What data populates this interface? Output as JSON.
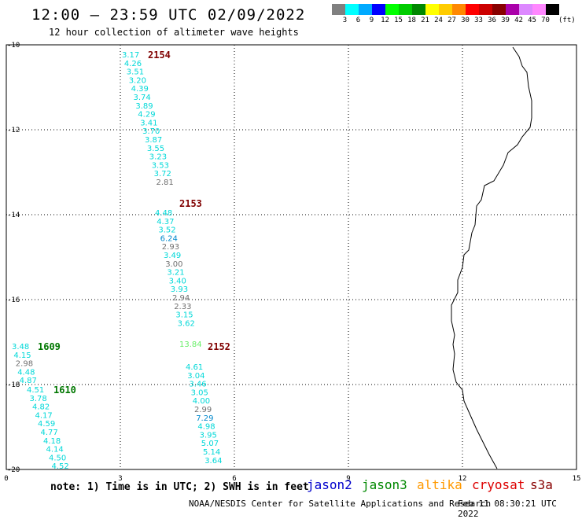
{
  "header": {
    "title": "12:00 — 23:59 UTC 02/09/2022",
    "subtitle": "12 hour collection of altimeter wave heights"
  },
  "color_scale": {
    "labels": [
      "3",
      "6",
      "9",
      "12",
      "15",
      "18",
      "21",
      "24",
      "27",
      "30",
      "33",
      "36",
      "39",
      "42",
      "45",
      "70"
    ],
    "colors": [
      "#808080",
      "#00ffff",
      "#00aaff",
      "#0000ff",
      "#00ff00",
      "#00cc00",
      "#008800",
      "#ffff00",
      "#ffcc00",
      "#ff8800",
      "#ff0000",
      "#cc0000",
      "#880000",
      "#aa00aa",
      "#dd88ff",
      "#ff88ff",
      "#000000"
    ],
    "unit": "(ft)"
  },
  "axes": {
    "lat_labels": [
      "-10",
      "-12",
      "-14",
      "-16",
      "-18",
      "-20"
    ],
    "lon_labels": [
      "0",
      "3",
      "6",
      "9",
      "12",
      "15"
    ],
    "lat_range": [
      -20,
      -10
    ],
    "lon_range": [
      0,
      15
    ]
  },
  "chart_data": {
    "type": "scatter",
    "tracks": [
      {
        "label": "2154",
        "label_color": "#800000",
        "values": [
          "3.17",
          "4.26",
          "3.51",
          "3.20",
          "4.39",
          "3.74",
          "3.89",
          "4.29",
          "3.41",
          "3.70",
          "3.87",
          "3.55",
          "3.23",
          "3.53",
          "3.72",
          "2.81"
        ],
        "colors": [
          "#00d8d8",
          "#00d8d8",
          "#00d8d8",
          "#00d8d8",
          "#00d8d8",
          "#00d8d8",
          "#00d8d8",
          "#00d8d8",
          "#00d8d8",
          "#00d8d8",
          "#00d8d8",
          "#00d8d8",
          "#00d8d8",
          "#00d8d8",
          "#00d8d8",
          "#707070"
        ]
      },
      {
        "label": "2153",
        "label_color": "#800000",
        "values": [
          "4.48",
          "4.37",
          "3.52",
          "6.24",
          "2.93",
          "3.49",
          "3.00",
          "3.21",
          "3.40",
          "3.93",
          "2.94",
          "2.33",
          "3.15",
          "3.62"
        ],
        "colors": [
          "#00d8d8",
          "#00d8d8",
          "#00d8d8",
          "#0088cc",
          "#707070",
          "#00d8d8",
          "#707070",
          "#00d8d8",
          "#00d8d8",
          "#00d8d8",
          "#707070",
          "#707070",
          "#00d8d8",
          "#00d8d8"
        ]
      },
      {
        "label": "2152",
        "label_color": "#800000",
        "overlay": "13.84",
        "values": [
          "4.61",
          "3.04",
          "3.46",
          "3.05",
          "4.00",
          "2.99",
          "7.29",
          "4.98",
          "3.95",
          "5.07",
          "5.14",
          "3.64"
        ],
        "colors": [
          "#00d8d8",
          "#00d8d8",
          "#00d8d8",
          "#00d8d8",
          "#00d8d8",
          "#707070",
          "#0088cc",
          "#00d8d8",
          "#00d8d8",
          "#00d8d8",
          "#00d8d8",
          "#00d8d8"
        ]
      },
      {
        "label": "1609",
        "label_color": "#007700",
        "values": [
          "3.48",
          "4.15",
          "2.98",
          "4.48",
          "4.87"
        ],
        "colors": [
          "#00d8d8",
          "#00d8d8",
          "#707070",
          "#00d8d8",
          "#00d8d8"
        ]
      },
      {
        "label": "1610",
        "label_color": "#007700",
        "values": [
          "4.51",
          "3.78",
          "4.82",
          "4.17",
          "4.59",
          "4.77",
          "4.18",
          "4.14",
          "4.50",
          "4.52"
        ],
        "colors": [
          "#00d8d8",
          "#00d8d8",
          "#00d8d8",
          "#00d8d8",
          "#00d8d8",
          "#00d8d8",
          "#00d8d8",
          "#00d8d8",
          "#00d8d8",
          "#00d8d8"
        ]
      }
    ]
  },
  "footer": {
    "note": "note: 1) Time is in UTC; 2) SWH is in feet",
    "satellites": [
      {
        "name": "jason2",
        "color": "#0000cc"
      },
      {
        "name": "jason3",
        "color": "#008800"
      },
      {
        "name": "altika",
        "color": "#ff9900"
      },
      {
        "name": "cryosat",
        "color": "#dd0000"
      },
      {
        "name": "s3a",
        "color": "#880000"
      }
    ],
    "credit": "NOAA/NESDIS Center for Satellite Applications and Research",
    "timestamp": "Feb 11 08:30:21 UTC 2022"
  }
}
